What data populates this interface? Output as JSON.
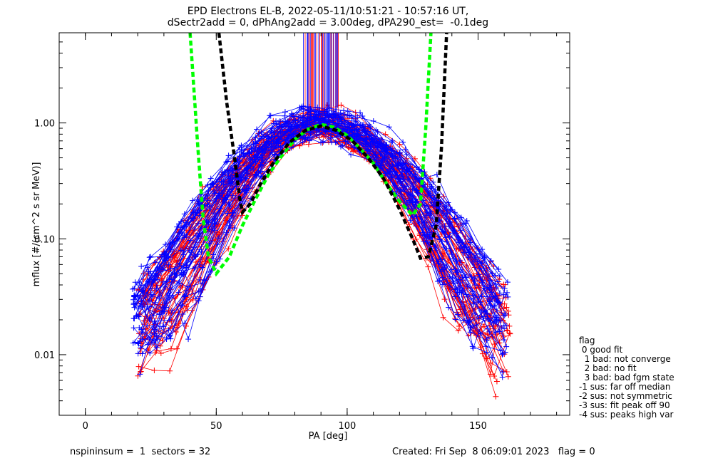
{
  "chart_data": {
    "type": "scatter",
    "title_line1": "EPD Electrons EL-B, 2022-05-11/10:51:21 - 10:57:16 UT,",
    "title_line2": "dSectr2add = 0, dPhAng2add = 3.00deg, dPA290_est=  -0.1deg",
    "xlabel": "PA [deg]",
    "ylabel": "mflux [#/(cm^2 s sr MeV)]",
    "xlim": [
      -10,
      185
    ],
    "ylim": [
      0.003,
      6.0
    ],
    "y_scale": "log",
    "x_ticks": [
      {
        "value": 0,
        "label": "0"
      },
      {
        "value": 50,
        "label": "50"
      },
      {
        "value": 100,
        "label": "100"
      },
      {
        "value": 150,
        "label": "150"
      }
    ],
    "x_minor_step": 10,
    "y_ticks": [
      {
        "value": 0.01,
        "label": "0.01"
      },
      {
        "value": 0.1,
        "label": "0.10"
      },
      {
        "value": 1.0,
        "label": "1.00"
      }
    ],
    "marker": "+",
    "series": [
      {
        "color": "#ff0000",
        "peak": 0.92,
        "n_curves": 45,
        "pa_range": [
          20,
          163
        ]
      },
      {
        "color": "#0000ff",
        "peak": 0.98,
        "n_curves": 45,
        "pa_range": [
          18,
          163
        ]
      }
    ],
    "fit_curves": [
      {
        "color": "#00ff00",
        "style": "dashed",
        "points": [
          [
            40,
            6.0
          ],
          [
            43,
            0.6
          ],
          [
            45,
            0.15
          ],
          [
            47,
            0.07
          ],
          [
            50,
            0.05
          ],
          [
            55,
            0.07
          ],
          [
            60,
            0.13
          ],
          [
            65,
            0.22
          ],
          [
            70,
            0.36
          ],
          [
            75,
            0.52
          ],
          [
            80,
            0.72
          ],
          [
            85,
            0.88
          ],
          [
            90,
            0.97
          ],
          [
            95,
            0.92
          ],
          [
            100,
            0.78
          ],
          [
            105,
            0.6
          ],
          [
            110,
            0.45
          ],
          [
            115,
            0.3
          ],
          [
            120,
            0.21
          ],
          [
            125,
            0.16
          ],
          [
            128,
            0.2
          ],
          [
            130,
            0.9
          ],
          [
            132,
            6.0
          ]
        ]
      },
      {
        "color": "#000000",
        "style": "dashed",
        "points": [
          [
            51,
            6.0
          ],
          [
            54,
            1.5
          ],
          [
            57,
            0.5
          ],
          [
            59,
            0.22
          ],
          [
            60,
            0.17
          ],
          [
            63,
            0.2
          ],
          [
            67,
            0.3
          ],
          [
            72,
            0.46
          ],
          [
            78,
            0.68
          ],
          [
            84,
            0.86
          ],
          [
            90,
            0.94
          ],
          [
            96,
            0.86
          ],
          [
            102,
            0.7
          ],
          [
            108,
            0.5
          ],
          [
            114,
            0.33
          ],
          [
            120,
            0.18
          ],
          [
            125,
            0.1
          ],
          [
            128,
            0.068
          ],
          [
            131,
            0.07
          ],
          [
            134,
            0.13
          ],
          [
            136,
            0.6
          ],
          [
            138,
            6.0
          ]
        ]
      }
    ],
    "legend": {
      "position": "right-bottom",
      "title": "flag",
      "entries": [
        " 0 good fit",
        "  1 bad: not converge",
        "  2 bad: no fit",
        "  3 bad: bad fgm state",
        "-1 sus: far off median",
        "-2 sus: not symmetric",
        "-3 sus: fit peak off 90",
        "-4 sus: peaks high var"
      ]
    },
    "footer": {
      "left": "nspininsum =  1  sectors = 32",
      "right": "Created: Fri Sep  8 06:09:01 2023   flag = 0"
    }
  }
}
